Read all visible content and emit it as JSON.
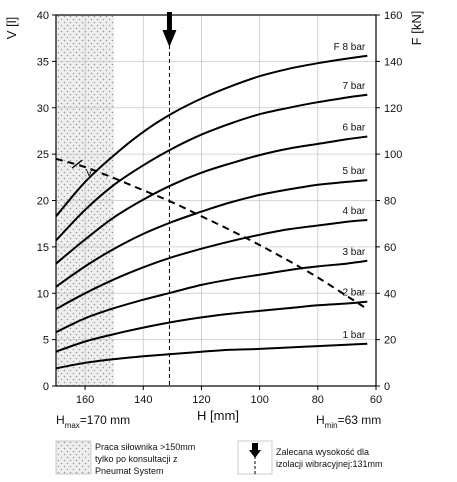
{
  "chart_data": {
    "type": "line",
    "xlabel": "H [mm]",
    "ylabel_left": "V [l]",
    "ylabel_right": "F [kN]",
    "xlim": [
      170,
      60
    ],
    "ylim_left": [
      0,
      40
    ],
    "ylim_right": [
      0,
      160
    ],
    "xticks": [
      160,
      140,
      120,
      100,
      80,
      60
    ],
    "yticks_left": [
      0,
      5,
      10,
      15,
      20,
      25,
      30,
      35,
      40
    ],
    "yticks_right": [
      0,
      20,
      40,
      60,
      80,
      100,
      120,
      140,
      160
    ],
    "hmax_label": {
      "base": "H",
      "sub": "max",
      "rest": "=170 mm"
    },
    "hmin_label": {
      "base": "H",
      "sub": "min",
      "rest": "=63 mm"
    },
    "hatch_zone": {
      "from": 170,
      "to": 150
    },
    "recommended_height": 131,
    "series": [
      {
        "name": "1 bar",
        "x": [
          170,
          160,
          150,
          140,
          130,
          120,
          110,
          100,
          90,
          80,
          70,
          63
        ],
        "y": [
          1.9,
          2.5,
          2.9,
          3.2,
          3.45,
          3.7,
          3.9,
          4.0,
          4.15,
          4.3,
          4.45,
          4.55
        ]
      },
      {
        "name": "2 bar",
        "x": [
          170,
          160,
          150,
          140,
          130,
          120,
          110,
          100,
          90,
          80,
          70,
          63
        ],
        "y": [
          3.7,
          4.8,
          5.6,
          6.3,
          6.9,
          7.4,
          7.8,
          8.1,
          8.4,
          8.7,
          8.9,
          9.1
        ]
      },
      {
        "name": "3 bar",
        "x": [
          170,
          160,
          150,
          140,
          130,
          120,
          110,
          100,
          90,
          80,
          70,
          63
        ],
        "y": [
          5.8,
          7.3,
          8.4,
          9.3,
          10.1,
          10.9,
          11.5,
          12.0,
          12.5,
          12.9,
          13.2,
          13.5
        ]
      },
      {
        "name": "4 bar",
        "x": [
          170,
          160,
          150,
          140,
          130,
          120,
          110,
          100,
          90,
          80,
          70,
          63
        ],
        "y": [
          8.3,
          10.0,
          11.5,
          12.8,
          13.9,
          14.8,
          15.6,
          16.3,
          16.9,
          17.3,
          17.7,
          17.9
        ]
      },
      {
        "name": "5 bar",
        "x": [
          170,
          160,
          150,
          140,
          130,
          120,
          110,
          100,
          90,
          80,
          70,
          63
        ],
        "y": [
          10.7,
          12.9,
          14.8,
          16.4,
          17.7,
          18.8,
          19.8,
          20.6,
          21.2,
          21.7,
          22.0,
          22.2
        ]
      },
      {
        "name": "6 bar",
        "x": [
          170,
          160,
          150,
          140,
          130,
          120,
          110,
          100,
          90,
          80,
          70,
          63
        ],
        "y": [
          13.2,
          15.8,
          18.2,
          20.1,
          21.7,
          23.0,
          24.0,
          24.9,
          25.6,
          26.1,
          26.6,
          26.9
        ]
      },
      {
        "name": "7 bar",
        "x": [
          170,
          160,
          150,
          140,
          130,
          120,
          110,
          100,
          90,
          80,
          70,
          63
        ],
        "y": [
          15.7,
          19.0,
          21.7,
          23.8,
          25.6,
          27.1,
          28.3,
          29.3,
          30.0,
          30.6,
          31.1,
          31.4
        ]
      },
      {
        "name": "F 8 bar",
        "x": [
          170,
          160,
          150,
          140,
          130,
          120,
          110,
          100,
          90,
          80,
          70,
          63
        ],
        "y": [
          18.3,
          22.0,
          24.9,
          27.4,
          29.4,
          31.0,
          32.3,
          33.4,
          34.2,
          34.8,
          35.3,
          35.6
        ]
      }
    ],
    "volume": {
      "label": "V",
      "x": [
        170,
        160,
        150,
        140,
        130,
        120,
        110,
        100,
        90,
        80,
        70,
        63
      ],
      "y": [
        24.5,
        23.6,
        22.4,
        21.1,
        19.8,
        18.3,
        16.8,
        15.2,
        13.5,
        11.7,
        9.7,
        8.3
      ]
    },
    "legend": {
      "hatch_text": [
        "Praca siłownika >150mm",
        "tylko po konsultacji z",
        "Pneumat System"
      ],
      "arrow_text": [
        "Zalecana wysokość dla",
        "izolacji wibracyjnej:131mm"
      ]
    }
  }
}
